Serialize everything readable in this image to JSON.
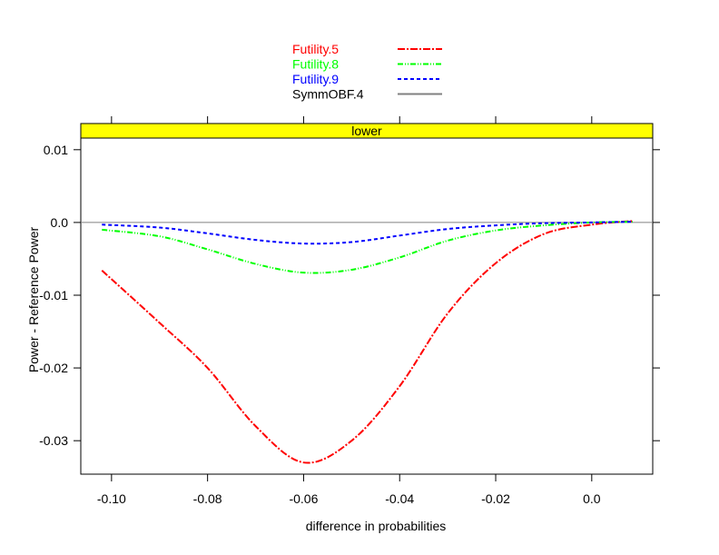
{
  "chart_data": {
    "type": "line",
    "strip_label": "lower",
    "xlabel": "difference in probabilities",
    "ylabel": "Power - Reference Power",
    "xlim": [
      -0.1064,
      0.0127
    ],
    "ylim": [
      -0.0346,
      0.0116
    ],
    "xticks": [
      -0.1,
      -0.08,
      -0.06,
      -0.04,
      -0.02,
      0.0
    ],
    "xtick_labels": [
      "-0.10",
      "-0.08",
      "-0.06",
      "-0.04",
      "-0.02",
      "0.0"
    ],
    "yticks": [
      0.01,
      0.0,
      -0.01,
      -0.02,
      -0.03
    ],
    "ytick_labels": [
      "0.01",
      "0.0",
      "-0.01",
      "-0.02",
      "-0.03"
    ],
    "strip_color": "#ffff00",
    "legend_position": "top",
    "x": [
      -0.102,
      -0.09,
      -0.08,
      -0.07,
      -0.06,
      -0.05,
      -0.04,
      -0.03,
      -0.02,
      -0.01,
      0.0,
      0.0085
    ],
    "series": [
      {
        "name": "Futility.5",
        "color": "#ff0000",
        "dash": "8,2,2,2",
        "values": [
          -0.0066,
          -0.0138,
          -0.02,
          -0.028,
          -0.033,
          -0.03,
          -0.0225,
          -0.0125,
          -0.0056,
          -0.0016,
          -0.0003,
          0.0002
        ]
      },
      {
        "name": "Futility.8",
        "color": "#00ff00",
        "dash": "6,2,1,2,1,2",
        "values": [
          -0.001,
          -0.0019,
          -0.0037,
          -0.0057,
          -0.0069,
          -0.0065,
          -0.0048,
          -0.0025,
          -0.0011,
          -0.0004,
          0.0,
          0.0001
        ]
      },
      {
        "name": "Futility.9",
        "color": "#0000ff",
        "dash": "4,3",
        "values": [
          -0.0003,
          -0.0007,
          -0.0015,
          -0.0024,
          -0.0029,
          -0.0027,
          -0.0018,
          -0.0009,
          -0.0004,
          -0.0001,
          0.0,
          0.0001
        ]
      },
      {
        "name": "SymmOBF.4",
        "color": "#808080",
        "dash": "",
        "reference": 0.0
      }
    ]
  }
}
